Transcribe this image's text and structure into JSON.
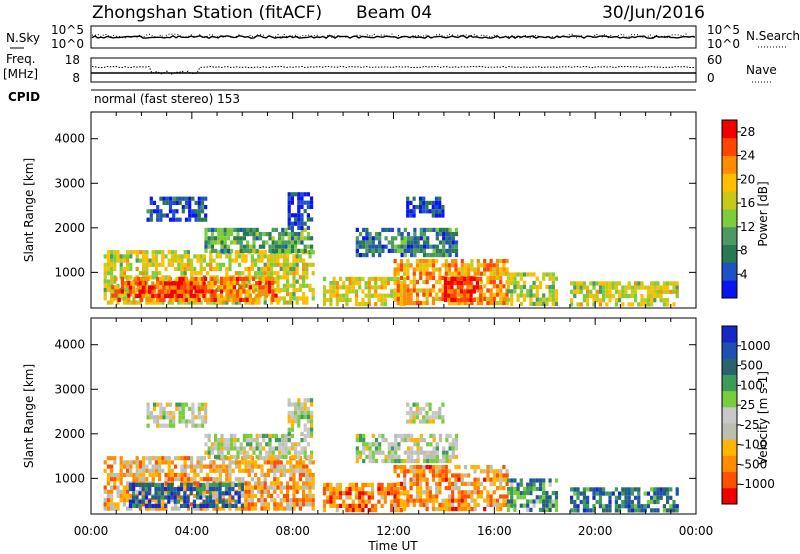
{
  "header": {
    "title": "Zhongshan Station (fitACF)",
    "beam": "Beam 04",
    "date": "30/Jun/2016"
  },
  "panels": {
    "nsky": {
      "label": "N.Sky",
      "left_ticks": [
        "10^5",
        "10^0"
      ],
      "right_ticks": [
        "10^5",
        "10^0"
      ],
      "right_label": "N.Search"
    },
    "freq": {
      "label_line1": "Freq.",
      "label_line2": "[MHz]",
      "left_ticks": [
        "18",
        "8"
      ],
      "right_ticks": [
        "60",
        "0"
      ],
      "right_label": "Nave"
    },
    "cpid": {
      "label": "CPID",
      "text": "normal (fast stereo) 153"
    }
  },
  "colors": {
    "power": [
      "#0a14f0",
      "#1e50c8",
      "#287850",
      "#4a9a62",
      "#7ccd3c",
      "#c8c819",
      "#ffbe00",
      "#ff8c00",
      "#ff4600",
      "#f00000"
    ],
    "velocity": [
      "#f00000",
      "#ff5000",
      "#ff8c00",
      "#ffb400",
      "#bdbdb0",
      "#c8c8c8",
      "#78cd3c",
      "#3c9a5a",
      "#28646e",
      "#1e50b4",
      "#1428c8"
    ]
  },
  "chart_data": [
    {
      "type": "heatmap",
      "name": "power",
      "ylabel": "Slant Range [km]",
      "y_ticks": [
        "1000",
        "2000",
        "3000",
        "4000"
      ],
      "ylim": [
        200,
        4600
      ],
      "xlim_hours": [
        0,
        24
      ],
      "colorbar": {
        "label": "Power [dB]",
        "ticks": [
          "4",
          "8",
          "12",
          "16",
          "20",
          "24",
          "28"
        ],
        "range": [
          0,
          30
        ]
      },
      "regions": [
        {
          "t0": 0.5,
          "t1": 8.8,
          "r0": 300,
          "r1": 1500,
          "level": 0.55
        },
        {
          "t0": 0.8,
          "t1": 7.5,
          "r0": 400,
          "r1": 900,
          "level": 0.78
        },
        {
          "t0": 1.5,
          "t1": 4.5,
          "r0": 500,
          "r1": 800,
          "level": 0.9
        },
        {
          "t0": 2.2,
          "t1": 4.5,
          "r0": 2200,
          "r1": 2700,
          "level": 0.15
        },
        {
          "t0": 4.5,
          "t1": 8.8,
          "r0": 1500,
          "r1": 2000,
          "level": 0.35
        },
        {
          "t0": 7.8,
          "t1": 8.8,
          "r0": 2000,
          "r1": 2800,
          "level": 0.12
        },
        {
          "t0": 9.2,
          "t1": 12.5,
          "r0": 300,
          "r1": 900,
          "level": 0.6
        },
        {
          "t0": 10.5,
          "t1": 14.5,
          "r0": 1400,
          "r1": 2000,
          "level": 0.25
        },
        {
          "t0": 12.5,
          "t1": 14.0,
          "r0": 2300,
          "r1": 2700,
          "level": 0.12
        },
        {
          "t0": 12.0,
          "t1": 16.5,
          "r0": 300,
          "r1": 1300,
          "level": 0.72
        },
        {
          "t0": 14.0,
          "t1": 15.5,
          "r0": 400,
          "r1": 900,
          "level": 0.92
        },
        {
          "t0": 16.5,
          "t1": 18.5,
          "r0": 300,
          "r1": 1000,
          "level": 0.5
        },
        {
          "t0": 19.0,
          "t1": 23.2,
          "r0": 300,
          "r1": 800,
          "level": 0.55
        }
      ]
    },
    {
      "type": "heatmap",
      "name": "velocity",
      "xlabel": "Time UT",
      "ylabel": "Slant Range [km]",
      "y_ticks": [
        "1000",
        "2000",
        "3000",
        "4000"
      ],
      "x_ticks": [
        "00:00",
        "04:00",
        "08:00",
        "12:00",
        "16:00",
        "20:00",
        "00:00"
      ],
      "ylim": [
        200,
        4600
      ],
      "xlim_hours": [
        0,
        24
      ],
      "colorbar": {
        "label": "Velocity [m s-1]",
        "ticks": [
          "1000",
          "500",
          "100",
          "25",
          "-25",
          "-100",
          "-500",
          "-1000"
        ],
        "range": [
          -1200,
          1200
        ]
      },
      "regions": [
        {
          "t0": 0.5,
          "t1": 8.8,
          "r0": 300,
          "r1": 1500,
          "level": 0.3
        },
        {
          "t0": 1.5,
          "t1": 6.0,
          "r0": 400,
          "r1": 900,
          "level": 0.82
        },
        {
          "t0": 2.2,
          "t1": 4.5,
          "r0": 2200,
          "r1": 2700,
          "level": 0.48
        },
        {
          "t0": 4.5,
          "t1": 8.8,
          "r0": 1500,
          "r1": 2000,
          "level": 0.5
        },
        {
          "t0": 7.8,
          "t1": 8.8,
          "r0": 2000,
          "r1": 2800,
          "level": 0.48
        },
        {
          "t0": 9.2,
          "t1": 12.5,
          "r0": 300,
          "r1": 900,
          "level": 0.2
        },
        {
          "t0": 10.5,
          "t1": 14.5,
          "r0": 1400,
          "r1": 2000,
          "level": 0.5
        },
        {
          "t0": 12.5,
          "t1": 14.0,
          "r0": 2300,
          "r1": 2700,
          "level": 0.49
        },
        {
          "t0": 12.0,
          "t1": 16.5,
          "r0": 300,
          "r1": 1300,
          "level": 0.25
        },
        {
          "t0": 16.5,
          "t1": 18.5,
          "r0": 300,
          "r1": 1000,
          "level": 0.7
        },
        {
          "t0": 19.0,
          "t1": 23.2,
          "r0": 300,
          "r1": 800,
          "level": 0.78
        }
      ]
    }
  ]
}
